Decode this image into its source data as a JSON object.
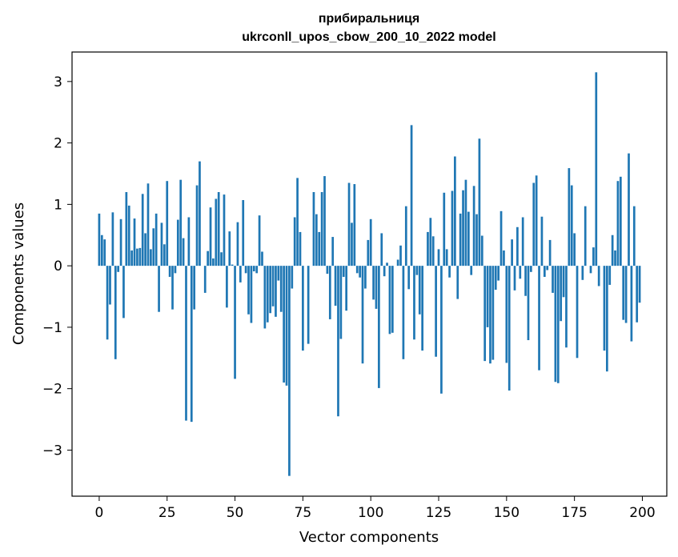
{
  "chart_data": {
    "type": "bar",
    "title_line1": "прибиральниця",
    "title_line2": "ukrconll_upos_cbow_200_10_2022 model",
    "xlabel": "Vector components",
    "ylabel": "Components values",
    "xlim": [
      -10,
      209
    ],
    "ylim": [
      -3.75,
      3.48
    ],
    "xticks": [
      0,
      25,
      50,
      75,
      100,
      125,
      150,
      175,
      200
    ],
    "xtick_labels": [
      "0",
      "25",
      "50",
      "75",
      "100",
      "125",
      "150",
      "175",
      "200"
    ],
    "yticks": [
      -3,
      -2,
      -1,
      0,
      1,
      2,
      3
    ],
    "ytick_labels": [
      "−3",
      "−2",
      "−1",
      "0",
      "1",
      "2",
      "3"
    ],
    "grid": false,
    "bar_color": "#1f77b4",
    "values": [
      0.85,
      0.5,
      0.43,
      -1.2,
      -0.63,
      0.87,
      -1.52,
      -0.1,
      0.76,
      -0.85,
      1.2,
      0.98,
      0.25,
      0.77,
      0.28,
      0.29,
      1.17,
      0.53,
      1.34,
      0.27,
      0.61,
      0.85,
      -0.75,
      0.7,
      0.35,
      1.38,
      -0.18,
      -0.71,
      -0.12,
      0.75,
      1.4,
      0.45,
      -2.52,
      0.79,
      -2.54,
      -0.71,
      1.31,
      1.7,
      0.0,
      -0.44,
      0.24,
      0.95,
      0.12,
      1.09,
      1.2,
      0.22,
      1.16,
      -0.68,
      0.56,
      0.02,
      -1.84,
      0.71,
      -0.27,
      1.07,
      -0.12,
      -0.79,
      -0.93,
      -0.09,
      -0.12,
      0.82,
      0.23,
      -1.02,
      -0.92,
      -0.77,
      -0.66,
      -0.83,
      -0.24,
      -0.75,
      -1.9,
      -1.95,
      -3.42,
      -0.37,
      0.79,
      1.43,
      0.55,
      -1.38,
      0.0,
      -1.27,
      0.0,
      1.2,
      0.84,
      0.55,
      1.2,
      1.46,
      -0.13,
      -0.87,
      0.47,
      -0.65,
      -2.45,
      -1.19,
      -0.18,
      -0.73,
      1.35,
      0.7,
      1.33,
      -0.12,
      -0.19,
      -1.59,
      -0.37,
      0.42,
      0.76,
      -0.55,
      -0.7,
      -1.99,
      0.53,
      -0.17,
      0.05,
      -1.11,
      -1.09,
      0.0,
      0.1,
      0.33,
      -1.52,
      0.97,
      -0.38,
      2.29,
      -1.2,
      -0.15,
      -0.79,
      -1.38,
      0.0,
      0.55,
      0.78,
      0.48,
      -1.48,
      0.27,
      -2.08,
      1.19,
      0.27,
      -0.19,
      1.22,
      1.78,
      -0.54,
      0.85,
      1.23,
      1.4,
      0.88,
      -0.15,
      1.3,
      0.84,
      2.07,
      0.49,
      -1.55,
      -1.0,
      -1.59,
      -1.53,
      -0.39,
      -0.24,
      0.89,
      0.25,
      -1.58,
      -2.03,
      0.43,
      -0.4,
      0.63,
      -0.21,
      0.79,
      -0.49,
      -1.21,
      -0.1,
      1.35,
      1.47,
      -1.7,
      0.8,
      -0.18,
      -0.07,
      0.42,
      -0.44,
      -1.89,
      -1.91,
      -0.9,
      -0.51,
      -1.33,
      1.59,
      1.31,
      0.53,
      -1.5,
      0.0,
      -0.23,
      0.97,
      0.0,
      -0.12,
      0.3,
      3.15,
      -0.33,
      0.0,
      -1.38,
      -1.72,
      -0.31,
      0.5,
      0.25,
      1.38,
      1.45,
      -0.88,
      -0.93,
      1.83,
      -1.23,
      0.97,
      -0.92,
      -0.6
    ]
  }
}
